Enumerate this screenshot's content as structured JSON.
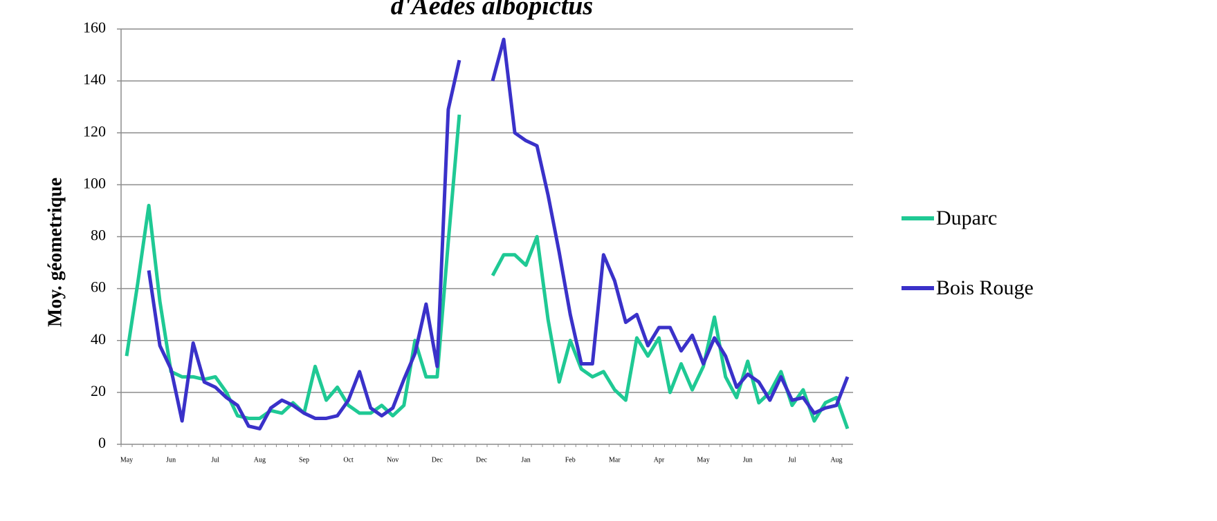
{
  "chart_data": {
    "type": "line",
    "title": "d'Aedes albopictus",
    "y_label": "Moy. géometrique",
    "categories": [
      "May",
      null,
      null,
      null,
      "Jun",
      null,
      null,
      null,
      "Jul",
      null,
      null,
      null,
      "Aug",
      null,
      null,
      null,
      "Sep",
      null,
      null,
      null,
      "Oct",
      null,
      null,
      null,
      "Nov",
      null,
      null,
      null,
      "Dec",
      null,
      null,
      null,
      "Dec",
      null,
      null,
      null,
      "Jan",
      null,
      null,
      null,
      "Feb",
      null,
      null,
      null,
      "Mar",
      null,
      null,
      null,
      "Apr",
      null,
      null,
      null,
      "May",
      null,
      null,
      null,
      "Jun",
      null,
      null,
      null,
      "Jul",
      null,
      null,
      null,
      "Aug",
      null
    ],
    "series": [
      {
        "name": "Duparc",
        "color": "#1fc994",
        "values": [
          34,
          62,
          92,
          55,
          28,
          26,
          26,
          25,
          26,
          20,
          11,
          10,
          10,
          13,
          12,
          16,
          12,
          30,
          17,
          22,
          15,
          12,
          12,
          15,
          11,
          15,
          40,
          26,
          26,
          78,
          127,
          null,
          null,
          65,
          73,
          73,
          69,
          80,
          48,
          24,
          40,
          29,
          26,
          28,
          21,
          17,
          41,
          34,
          41,
          20,
          31,
          21,
          30,
          49,
          26,
          18,
          32,
          16,
          20,
          28,
          15,
          21,
          9,
          16,
          18,
          6
        ]
      },
      {
        "name": "Bois Rouge",
        "color": "#3a31c9",
        "values": [
          null,
          null,
          67,
          38,
          29,
          9,
          39,
          24,
          22,
          18,
          15,
          7,
          6,
          14,
          17,
          15,
          12,
          10,
          10,
          11,
          17,
          28,
          14,
          11,
          14,
          25,
          35,
          54,
          30,
          129,
          148,
          null,
          null,
          140,
          156,
          120,
          117,
          115,
          96,
          74,
          50,
          31,
          31,
          73,
          63,
          47,
          50,
          38,
          45,
          45,
          36,
          42,
          31,
          41,
          34,
          22,
          27,
          24,
          17,
          26,
          17,
          18,
          12,
          14,
          15,
          26
        ]
      }
    ],
    "ylim": [
      0,
      160
    ],
    "yticks": [
      0,
      20,
      40,
      60,
      80,
      100,
      120,
      140,
      160
    ],
    "grid": true,
    "legend": "right"
  }
}
